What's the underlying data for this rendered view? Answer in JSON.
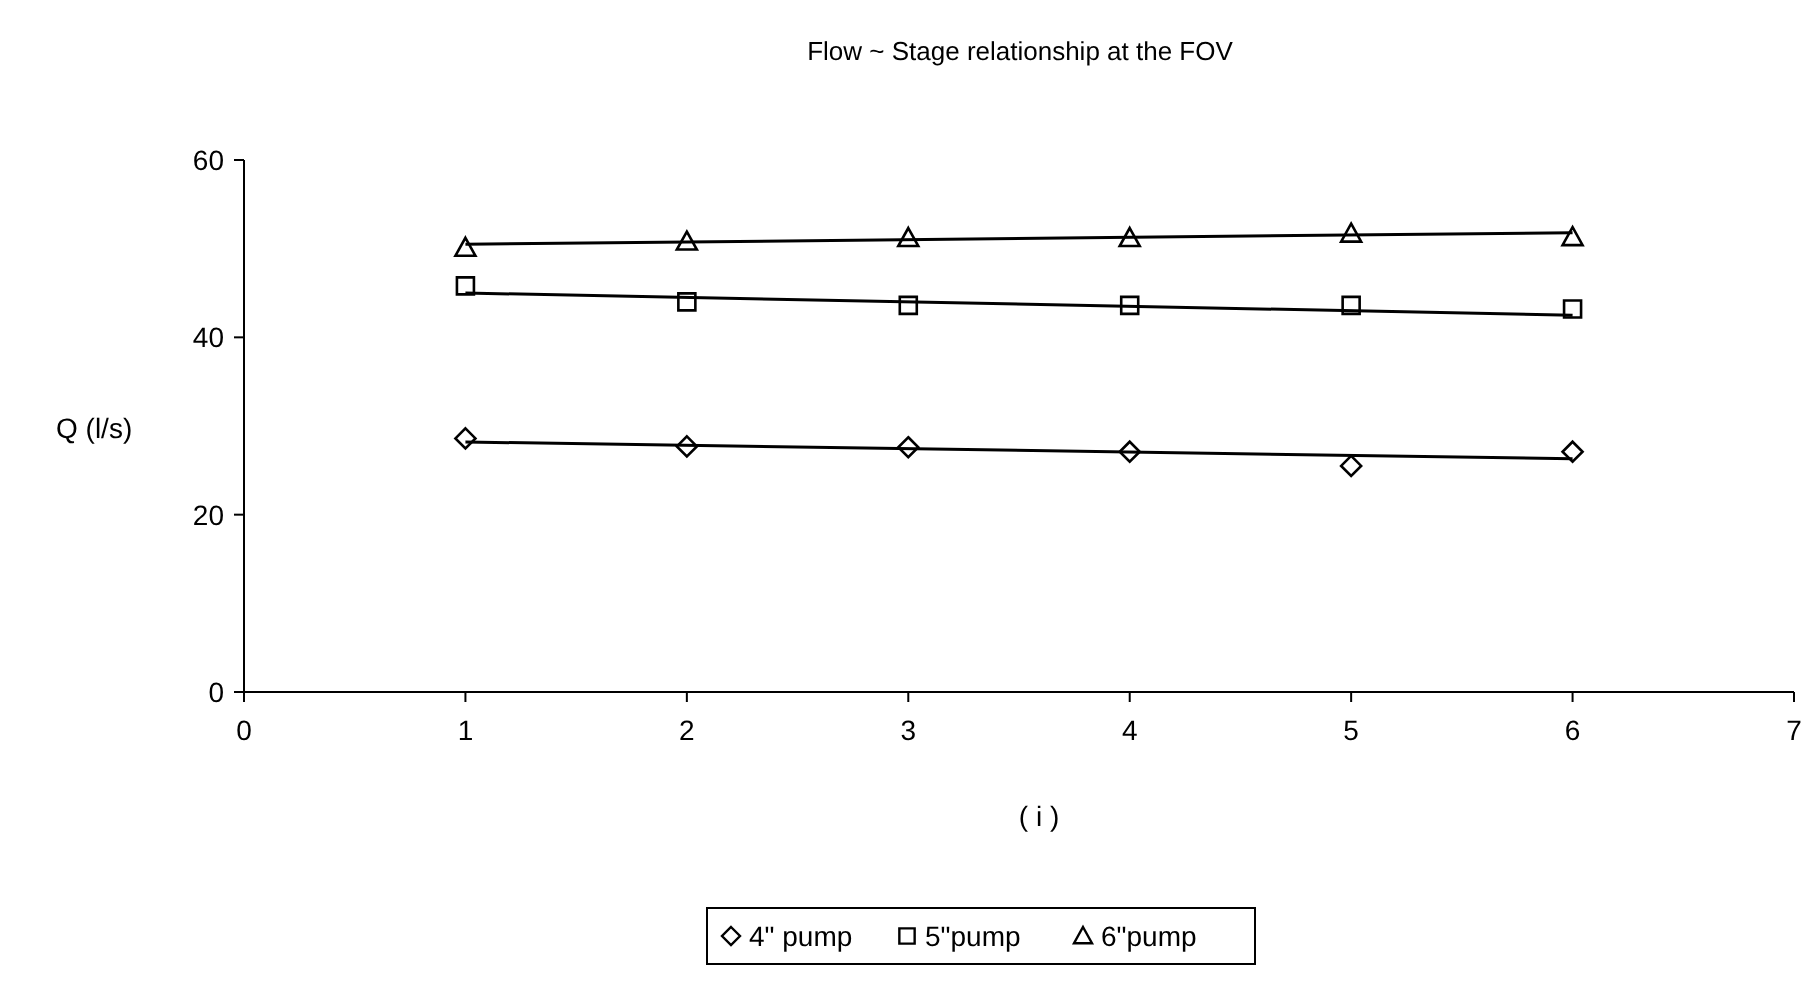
{
  "chart_data": {
    "type": "scatter",
    "title": "Flow ~ Stage relationship at the FOV",
    "xlabel": "( i )",
    "ylabel": "Q (l/s)",
    "xlim": [
      0,
      7
    ],
    "xticks": [
      0,
      1,
      2,
      3,
      4,
      5,
      6,
      7
    ],
    "ylim": [
      0,
      60
    ],
    "yticks": [
      0,
      20,
      40,
      60
    ],
    "grid": false,
    "legend": "bottom",
    "series": [
      {
        "name": "4\" pump",
        "marker": "diamond",
        "color": "#000000",
        "x": [
          1,
          2,
          3,
          4,
          5,
          6
        ],
        "values": [
          28.6,
          27.7,
          27.6,
          27.1,
          25.5,
          27.1
        ]
      },
      {
        "name": "5\"pump",
        "marker": "square",
        "color": "#000000",
        "x": [
          1,
          2,
          3,
          4,
          5,
          6
        ],
        "values": [
          45.8,
          44.0,
          43.6,
          43.6,
          43.6,
          43.2
        ]
      },
      {
        "name": "6\"pump",
        "marker": "triangle",
        "color": "#000000",
        "x": [
          1,
          2,
          3,
          4,
          5,
          6
        ],
        "values": [
          50.1,
          50.8,
          51.2,
          51.2,
          51.7,
          51.3
        ]
      },
      {
        "type": "line",
        "marker": "none",
        "line_style": "solid",
        "color": "#000000",
        "x": [
          1,
          6
        ],
        "values": [
          28.2,
          26.3
        ]
      },
      {
        "type": "line",
        "marker": "none",
        "line_style": "solid",
        "color": "#000000",
        "x": [
          1,
          6
        ],
        "values": [
          45.0,
          42.5
        ]
      },
      {
        "type": "line",
        "marker": "none",
        "line_style": "solid",
        "color": "#000000",
        "x": [
          1,
          6
        ],
        "values": [
          50.5,
          51.8
        ]
      }
    ]
  }
}
